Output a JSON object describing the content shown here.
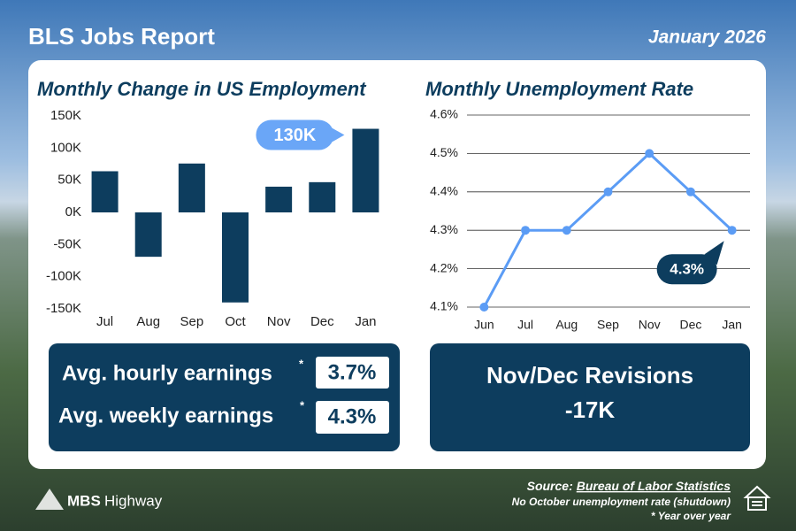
{
  "header": {
    "title": "BLS Jobs Report",
    "date": "January 2026"
  },
  "chart_data": [
    {
      "type": "bar",
      "title": "Monthly Change in US Employment",
      "categories": [
        "Jul",
        "Aug",
        "Sep",
        "Oct",
        "Nov",
        "Dec",
        "Jan"
      ],
      "values": [
        64000,
        -69000,
        76000,
        -140000,
        40000,
        47000,
        130000
      ],
      "value_labels": [
        null,
        null,
        null,
        null,
        null,
        null,
        "130K"
      ],
      "color": "#0d3d5e",
      "ylim": [
        -150000,
        150000
      ],
      "yticks": [
        {
          "value": -150000,
          "label": "-150K"
        },
        {
          "value": -100000,
          "label": "-100K"
        },
        {
          "value": -50000,
          "label": "-50K"
        },
        {
          "value": 0,
          "label": "0K"
        },
        {
          "value": 50000,
          "label": "50K"
        },
        {
          "value": 100000,
          "label": "100K"
        },
        {
          "value": 150000,
          "label": "150K"
        }
      ],
      "grid": false
    },
    {
      "type": "line",
      "title": "Monthly Unemployment Rate",
      "categories": [
        "Jun",
        "Jul",
        "Aug",
        "Sep",
        "Nov",
        "Dec",
        "Jan"
      ],
      "values": [
        4.1,
        4.3,
        4.3,
        4.4,
        4.5,
        4.4,
        4.3
      ],
      "value_labels": [
        null,
        null,
        null,
        null,
        null,
        null,
        "4.3%"
      ],
      "color": "#5b9cf5",
      "ylim": [
        4.1,
        4.6
      ],
      "yticks": [
        {
          "value": 4.1,
          "label": "4.1%"
        },
        {
          "value": 4.2,
          "label": "4.2%"
        },
        {
          "value": 4.3,
          "label": "4.3%"
        },
        {
          "value": 4.4,
          "label": "4.4%"
        },
        {
          "value": 4.5,
          "label": "4.5%"
        },
        {
          "value": 4.6,
          "label": "4.6%"
        }
      ],
      "grid": true
    }
  ],
  "earnings": {
    "rows": [
      {
        "label": "Avg. hourly earnings",
        "note": "*",
        "value": "3.7%"
      },
      {
        "label": "Avg. weekly earnings",
        "note": "*",
        "value": "4.3%"
      }
    ]
  },
  "revisions": {
    "label": "Nov/Dec Revisions",
    "value": "-17K"
  },
  "footer": {
    "brand": [
      "MBS",
      "Highway"
    ],
    "source_label": "Source:",
    "source": "Bureau of Labor Statistics",
    "notes": [
      "No October unemployment rate (shutdown)",
      "* Year over year"
    ]
  }
}
